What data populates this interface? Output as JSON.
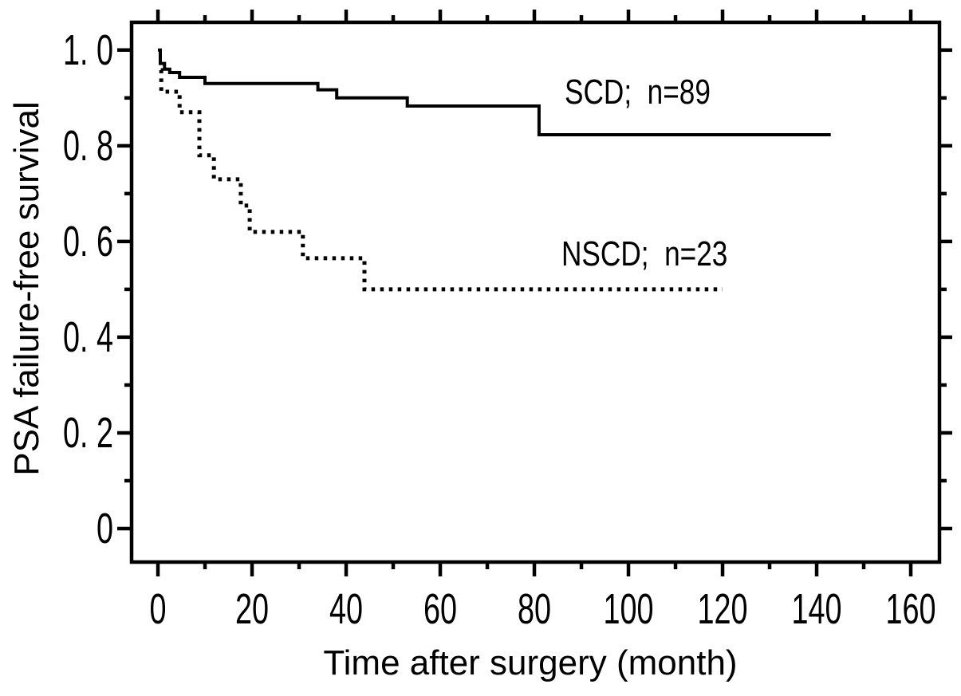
{
  "figure": {
    "kind": "kaplan-meier-survival-plot",
    "background": "#ffffff",
    "ink": "#000000"
  },
  "chart_data": {
    "type": "line",
    "variant": "step-survival-curves",
    "title": "",
    "xlabel": "Time after surgery (month)",
    "ylabel": "PSA failure-free survival",
    "xlim": [
      -5.6,
      166.1
    ],
    "ylim": [
      -0.07,
      1.058
    ],
    "grid": false,
    "legend_position": "inline-annotations",
    "x_axis": {
      "major_ticks": [
        0,
        20,
        40,
        60,
        80,
        100,
        120,
        140,
        160
      ],
      "minor_ticks": [
        10,
        30,
        50,
        70,
        90,
        110,
        130,
        150
      ],
      "tick_labels": [
        "0",
        "20",
        "40",
        "60",
        "80",
        "100",
        "120",
        "140",
        "160"
      ]
    },
    "y_axis": {
      "major_ticks": [
        1.0,
        0.8,
        0.6,
        0.4,
        0.2,
        0
      ],
      "minor_ticks": [
        0.9,
        0.7,
        0.5,
        0.3,
        0.1
      ],
      "tick_labels": [
        "1. 0",
        "0. 8",
        "0. 6",
        "0. 4",
        "0. 2",
        "0"
      ]
    },
    "series": [
      {
        "name": "SCD",
        "label": "SCD;  n=89",
        "n": 89,
        "line_style": "solid",
        "x": [
          0,
          0.5,
          1.4,
          2.5,
          4.6,
          10,
          34,
          38,
          53,
          81,
          143
        ],
        "y": [
          1.0,
          0.972,
          0.96,
          0.953,
          0.943,
          0.93,
          0.917,
          0.9,
          0.883,
          0.823,
          0.823
        ]
      },
      {
        "name": "NSCD",
        "label": "NSCD;  n=23",
        "n": 23,
        "line_style": "dotted",
        "x": [
          0.6,
          0.7,
          4.6,
          8.8,
          11.9,
          17.6,
          19.5,
          30.8,
          43.9,
          120
        ],
        "y": [
          0.958,
          0.913,
          0.87,
          0.78,
          0.73,
          0.675,
          0.62,
          0.565,
          0.5,
          0.5
        ]
      }
    ]
  }
}
